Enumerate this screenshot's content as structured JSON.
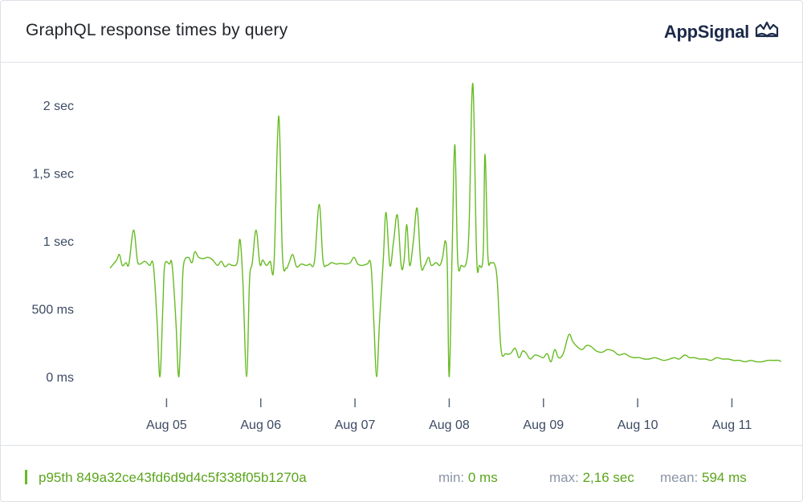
{
  "header": {
    "title": "GraphQL response times by query",
    "brand": "AppSignal"
  },
  "colors": {
    "series": "#66bb22",
    "axis_text": "#3c4a63",
    "border": "#dde1e6"
  },
  "chart_data": {
    "type": "line",
    "title": "GraphQL response times by query",
    "y_unit": "ms",
    "ylim": [
      0,
      2200
    ],
    "y_ticks": [
      {
        "value": 0,
        "label": "0 ms"
      },
      {
        "value": 500,
        "label": "500 ms"
      },
      {
        "value": 1000,
        "label": "1 sec"
      },
      {
        "value": 1500,
        "label": "1,5 sec"
      },
      {
        "value": 2000,
        "label": "2 sec"
      }
    ],
    "x_ticks": [
      {
        "value": 5,
        "label": "Aug 05"
      },
      {
        "value": 6,
        "label": "Aug 06"
      },
      {
        "value": 7,
        "label": "Aug 07"
      },
      {
        "value": 8,
        "label": "Aug 08"
      },
      {
        "value": 9,
        "label": "Aug 09"
      },
      {
        "value": 10,
        "label": "Aug 10"
      },
      {
        "value": 11,
        "label": "Aug 11"
      }
    ],
    "xlim": [
      4.4,
      11.55
    ],
    "grid": false,
    "series": [
      {
        "name": "p95th 849a32ce43fd6d9d4c5f338f05b1270a",
        "points": [
          [
            4.4,
            800
          ],
          [
            4.47,
            860
          ],
          [
            4.5,
            900
          ],
          [
            4.53,
            820
          ],
          [
            4.57,
            840
          ],
          [
            4.6,
            830
          ],
          [
            4.65,
            1080
          ],
          [
            4.69,
            860
          ],
          [
            4.72,
            830
          ],
          [
            4.77,
            850
          ],
          [
            4.82,
            820
          ],
          [
            4.86,
            820
          ],
          [
            4.9,
            400
          ],
          [
            4.93,
            0
          ],
          [
            4.96,
            500
          ],
          [
            4.98,
            820
          ],
          [
            5.03,
            830
          ],
          [
            5.06,
            820
          ],
          [
            5.1,
            400
          ],
          [
            5.13,
            0
          ],
          [
            5.16,
            500
          ],
          [
            5.18,
            820
          ],
          [
            5.23,
            880
          ],
          [
            5.27,
            840
          ],
          [
            5.3,
            920
          ],
          [
            5.34,
            880
          ],
          [
            5.39,
            870
          ],
          [
            5.44,
            880
          ],
          [
            5.49,
            860
          ],
          [
            5.54,
            820
          ],
          [
            5.58,
            850
          ],
          [
            5.62,
            810
          ],
          [
            5.66,
            830
          ],
          [
            5.7,
            820
          ],
          [
            5.75,
            840
          ],
          [
            5.78,
            1010
          ],
          [
            5.81,
            700
          ],
          [
            5.85,
            0
          ],
          [
            5.88,
            700
          ],
          [
            5.91,
            840
          ],
          [
            5.95,
            1080
          ],
          [
            5.99,
            830
          ],
          [
            6.02,
            860
          ],
          [
            6.06,
            820
          ],
          [
            6.1,
            850
          ],
          [
            6.14,
            830
          ],
          [
            6.19,
            1920
          ],
          [
            6.23,
            900
          ],
          [
            6.27,
            800
          ],
          [
            6.3,
            840
          ],
          [
            6.34,
            900
          ],
          [
            6.38,
            810
          ],
          [
            6.43,
            830
          ],
          [
            6.48,
            820
          ],
          [
            6.52,
            830
          ],
          [
            6.57,
            850
          ],
          [
            6.62,
            1270
          ],
          [
            6.66,
            860
          ],
          [
            6.7,
            820
          ],
          [
            6.75,
            840
          ],
          [
            6.8,
            830
          ],
          [
            6.85,
            835
          ],
          [
            6.9,
            830
          ],
          [
            6.95,
            840
          ],
          [
            6.99,
            880
          ],
          [
            7.03,
            830
          ],
          [
            7.08,
            820
          ],
          [
            7.13,
            830
          ],
          [
            7.17,
            820
          ],
          [
            7.2,
            400
          ],
          [
            7.23,
            0
          ],
          [
            7.26,
            400
          ],
          [
            7.3,
            860
          ],
          [
            7.33,
            1210
          ],
          [
            7.37,
            820
          ],
          [
            7.41,
            1000
          ],
          [
            7.45,
            1190
          ],
          [
            7.49,
            820
          ],
          [
            7.52,
            850
          ],
          [
            7.55,
            1120
          ],
          [
            7.58,
            820
          ],
          [
            7.62,
            1000
          ],
          [
            7.66,
            1240
          ],
          [
            7.7,
            820
          ],
          [
            7.74,
            820
          ],
          [
            7.78,
            880
          ],
          [
            7.81,
            820
          ],
          [
            7.86,
            840
          ],
          [
            7.9,
            820
          ],
          [
            7.93,
            880
          ],
          [
            7.96,
            1000
          ],
          [
            7.98,
            800
          ],
          [
            8.0,
            0
          ],
          [
            8.03,
            900
          ],
          [
            8.06,
            1710
          ],
          [
            8.09,
            860
          ],
          [
            8.13,
            820
          ],
          [
            8.18,
            840
          ],
          [
            8.21,
            1100
          ],
          [
            8.25,
            2160
          ],
          [
            8.29,
            900
          ],
          [
            8.32,
            820
          ],
          [
            8.36,
            900
          ],
          [
            8.38,
            1640
          ],
          [
            8.41,
            900
          ],
          [
            8.44,
            840
          ],
          [
            8.48,
            830
          ],
          [
            8.51,
            700
          ],
          [
            8.55,
            200
          ],
          [
            8.6,
            170
          ],
          [
            8.65,
            170
          ],
          [
            8.7,
            210
          ],
          [
            8.74,
            140
          ],
          [
            8.78,
            190
          ],
          [
            8.82,
            170
          ],
          [
            8.86,
            130
          ],
          [
            8.91,
            160
          ],
          [
            8.96,
            150
          ],
          [
            9.0,
            140
          ],
          [
            9.04,
            170
          ],
          [
            9.08,
            110
          ],
          [
            9.12,
            200
          ],
          [
            9.16,
            140
          ],
          [
            9.21,
            170
          ],
          [
            9.27,
            310
          ],
          [
            9.31,
            260
          ],
          [
            9.36,
            220
          ],
          [
            9.41,
            200
          ],
          [
            9.46,
            230
          ],
          [
            9.51,
            220
          ],
          [
            9.56,
            190
          ],
          [
            9.62,
            180
          ],
          [
            9.68,
            200
          ],
          [
            9.74,
            190
          ],
          [
            9.8,
            160
          ],
          [
            9.86,
            170
          ],
          [
            9.91,
            150
          ],
          [
            9.96,
            140
          ],
          [
            10.02,
            140
          ],
          [
            10.07,
            130
          ],
          [
            10.12,
            130
          ],
          [
            10.18,
            140
          ],
          [
            10.23,
            130
          ],
          [
            10.28,
            120
          ],
          [
            10.34,
            130
          ],
          [
            10.39,
            140
          ],
          [
            10.44,
            130
          ],
          [
            10.5,
            160
          ],
          [
            10.55,
            140
          ],
          [
            10.6,
            140
          ],
          [
            10.66,
            130
          ],
          [
            10.72,
            130
          ],
          [
            10.78,
            120
          ],
          [
            10.84,
            140
          ],
          [
            10.9,
            130
          ],
          [
            10.96,
            130
          ],
          [
            11.02,
            120
          ],
          [
            11.08,
            120
          ],
          [
            11.14,
            110
          ],
          [
            11.2,
            120
          ],
          [
            11.26,
            110
          ],
          [
            11.32,
            110
          ],
          [
            11.38,
            120
          ],
          [
            11.44,
            120
          ],
          [
            11.5,
            120
          ],
          [
            11.52,
            110
          ]
        ]
      }
    ]
  },
  "footer": {
    "legend_label": "p95th 849a32ce43fd6d9d4c5f338f05b1270a",
    "min_label": "min:",
    "min_value": "0 ms",
    "max_label": "max:",
    "max_value": "2,16 sec",
    "mean_label": "mean:",
    "mean_value": "594 ms"
  }
}
